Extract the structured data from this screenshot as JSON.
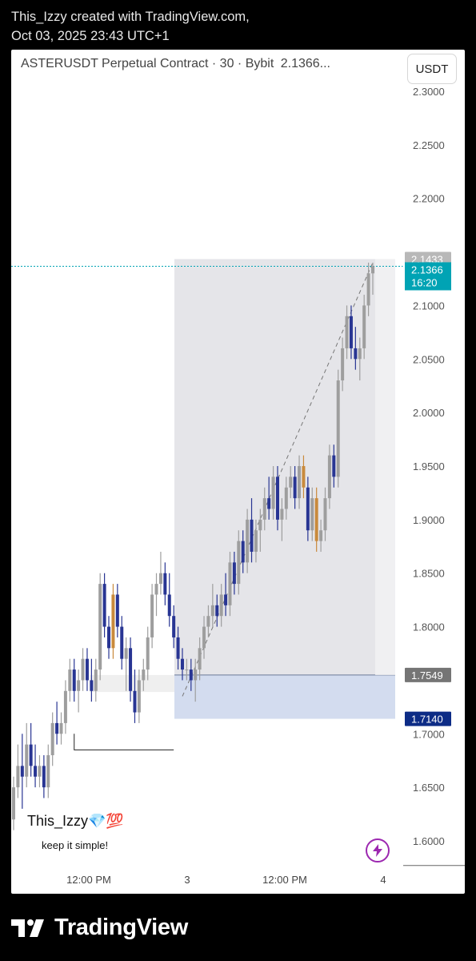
{
  "header": {
    "line1": "This_Izzy created with TradingView.com,",
    "line2": "Oct 03, 2025 23:43 UTC+1"
  },
  "symbol": {
    "name": "ASTERUSDT Perpetual Contract · 30 · Bybit",
    "price": "2.1366..."
  },
  "currency_button": "USDT",
  "watermark": {
    "title": "This_Izzy💎💯",
    "subtitle": "keep it simple!"
  },
  "footer": {
    "brand": "TradingView"
  },
  "icons": {
    "alert": "bolt-icon",
    "logo": "tradingview-logo-icon"
  },
  "colors": {
    "up": "#9e9e9e",
    "down": "#283593",
    "orange": "#c98a3c",
    "target_zone": "#e5e5e9",
    "stop_zone": "#d3dcef",
    "current_price_label": "#00a3b4",
    "stop_label": "#0d2c86",
    "entry_label": "#757575",
    "high_label": "#9e9e9e"
  },
  "chart_data": {
    "type": "candlestick",
    "symbol": "ASTERUSDT",
    "timeframe": "30",
    "ylim": [
      1.585,
      2.32
    ],
    "yticks": [
      "2.3000",
      "2.2500",
      "2.2000",
      "2.1000",
      "2.0500",
      "2.0000",
      "1.9500",
      "1.9000",
      "1.8500",
      "1.8000",
      "1.7000",
      "1.6500",
      "1.6000"
    ],
    "xticks": [
      "12:00 PM",
      "3",
      "12:00 PM",
      "4"
    ],
    "price_labels": {
      "high": "2.1433",
      "current": "2.1366",
      "countdown": "16:20",
      "entry": "1.7549",
      "stop": "1.7140"
    },
    "position": {
      "entry": 1.7549,
      "stop": 1.714,
      "target": 2.1433
    },
    "support_level": 1.7,
    "candles": [
      [
        1.62,
        1.66,
        1.61,
        1.65
      ],
      [
        1.65,
        1.69,
        1.64,
        1.67
      ],
      [
        1.67,
        1.7,
        1.63,
        1.66
      ],
      [
        1.66,
        1.71,
        1.65,
        1.69
      ],
      [
        1.69,
        1.71,
        1.66,
        1.67
      ],
      [
        1.67,
        1.69,
        1.65,
        1.66
      ],
      [
        1.66,
        1.68,
        1.65,
        1.67
      ],
      [
        1.67,
        1.68,
        1.64,
        1.65
      ],
      [
        1.65,
        1.69,
        1.64,
        1.68
      ],
      [
        1.68,
        1.72,
        1.67,
        1.71
      ],
      [
        1.71,
        1.73,
        1.69,
        1.7
      ],
      [
        1.7,
        1.72,
        1.69,
        1.71
      ],
      [
        1.71,
        1.75,
        1.7,
        1.74
      ],
      [
        1.74,
        1.77,
        1.73,
        1.76
      ],
      [
        1.76,
        1.77,
        1.73,
        1.74
      ],
      [
        1.74,
        1.76,
        1.72,
        1.75
      ],
      [
        1.75,
        1.78,
        1.74,
        1.77
      ],
      [
        1.77,
        1.78,
        1.74,
        1.75
      ],
      [
        1.75,
        1.77,
        1.73,
        1.74
      ],
      [
        1.74,
        1.77,
        1.73,
        1.76
      ],
      [
        1.76,
        1.85,
        1.75,
        1.84
      ],
      [
        1.84,
        1.85,
        1.79,
        1.8
      ],
      [
        1.8,
        1.81,
        1.77,
        1.78
      ],
      [
        1.78,
        1.84,
        1.77,
        1.83
      ],
      [
        1.83,
        1.84,
        1.79,
        1.8
      ],
      [
        1.8,
        1.81,
        1.76,
        1.77
      ],
      [
        1.77,
        1.79,
        1.74,
        1.78
      ],
      [
        1.78,
        1.79,
        1.73,
        1.74
      ],
      [
        1.74,
        1.76,
        1.71,
        1.72
      ],
      [
        1.72,
        1.76,
        1.71,
        1.75
      ],
      [
        1.75,
        1.77,
        1.74,
        1.76
      ],
      [
        1.76,
        1.8,
        1.75,
        1.79
      ],
      [
        1.79,
        1.84,
        1.78,
        1.83
      ],
      [
        1.83,
        1.85,
        1.81,
        1.84
      ],
      [
        1.84,
        1.87,
        1.83,
        1.85
      ],
      [
        1.85,
        1.86,
        1.82,
        1.83
      ],
      [
        1.83,
        1.85,
        1.8,
        1.81
      ],
      [
        1.81,
        1.82,
        1.78,
        1.79
      ],
      [
        1.79,
        1.8,
        1.76,
        1.77
      ],
      [
        1.77,
        1.78,
        1.75,
        1.76
      ],
      [
        1.76,
        1.77,
        1.75,
        1.76
      ],
      [
        1.76,
        1.77,
        1.74,
        1.75
      ],
      [
        1.75,
        1.77,
        1.73,
        1.76
      ],
      [
        1.76,
        1.79,
        1.75,
        1.78
      ],
      [
        1.78,
        1.81,
        1.77,
        1.8
      ],
      [
        1.8,
        1.82,
        1.79,
        1.81
      ],
      [
        1.81,
        1.84,
        1.8,
        1.82
      ],
      [
        1.82,
        1.83,
        1.8,
        1.81
      ],
      [
        1.81,
        1.84,
        1.8,
        1.83
      ],
      [
        1.83,
        1.85,
        1.81,
        1.82
      ],
      [
        1.82,
        1.87,
        1.81,
        1.86
      ],
      [
        1.86,
        1.87,
        1.83,
        1.84
      ],
      [
        1.84,
        1.89,
        1.83,
        1.88
      ],
      [
        1.88,
        1.89,
        1.85,
        1.86
      ],
      [
        1.86,
        1.91,
        1.85,
        1.9
      ],
      [
        1.9,
        1.92,
        1.86,
        1.87
      ],
      [
        1.87,
        1.9,
        1.86,
        1.89
      ],
      [
        1.89,
        1.91,
        1.87,
        1.9
      ],
      [
        1.9,
        1.93,
        1.89,
        1.92
      ],
      [
        1.92,
        1.94,
        1.9,
        1.91
      ],
      [
        1.91,
        1.95,
        1.9,
        1.94
      ],
      [
        1.94,
        1.95,
        1.89,
        1.9
      ],
      [
        1.9,
        1.92,
        1.88,
        1.91
      ],
      [
        1.91,
        1.94,
        1.9,
        1.93
      ],
      [
        1.93,
        1.95,
        1.92,
        1.94
      ],
      [
        1.94,
        1.95,
        1.91,
        1.92
      ],
      [
        1.92,
        1.96,
        1.91,
        1.95
      ],
      [
        1.95,
        1.96,
        1.92,
        1.93
      ],
      [
        1.93,
        1.94,
        1.88,
        1.89
      ],
      [
        1.89,
        1.93,
        1.88,
        1.92
      ],
      [
        1.92,
        1.93,
        1.87,
        1.88
      ],
      [
        1.88,
        1.9,
        1.87,
        1.89
      ],
      [
        1.89,
        1.93,
        1.88,
        1.92
      ],
      [
        1.92,
        1.97,
        1.91,
        1.96
      ],
      [
        1.96,
        1.97,
        1.93,
        1.94
      ],
      [
        1.94,
        2.04,
        1.93,
        2.03
      ],
      [
        2.03,
        2.07,
        2.02,
        2.06
      ],
      [
        2.06,
        2.1,
        2.05,
        2.09
      ],
      [
        2.09,
        2.1,
        2.05,
        2.06
      ],
      [
        2.06,
        2.08,
        2.04,
        2.05
      ],
      [
        2.05,
        2.07,
        2.03,
        2.06
      ],
      [
        2.06,
        2.11,
        2.05,
        2.1
      ],
      [
        2.1,
        2.14,
        2.09,
        2.13
      ],
      [
        2.13,
        2.14,
        2.11,
        2.1366
      ]
    ]
  }
}
